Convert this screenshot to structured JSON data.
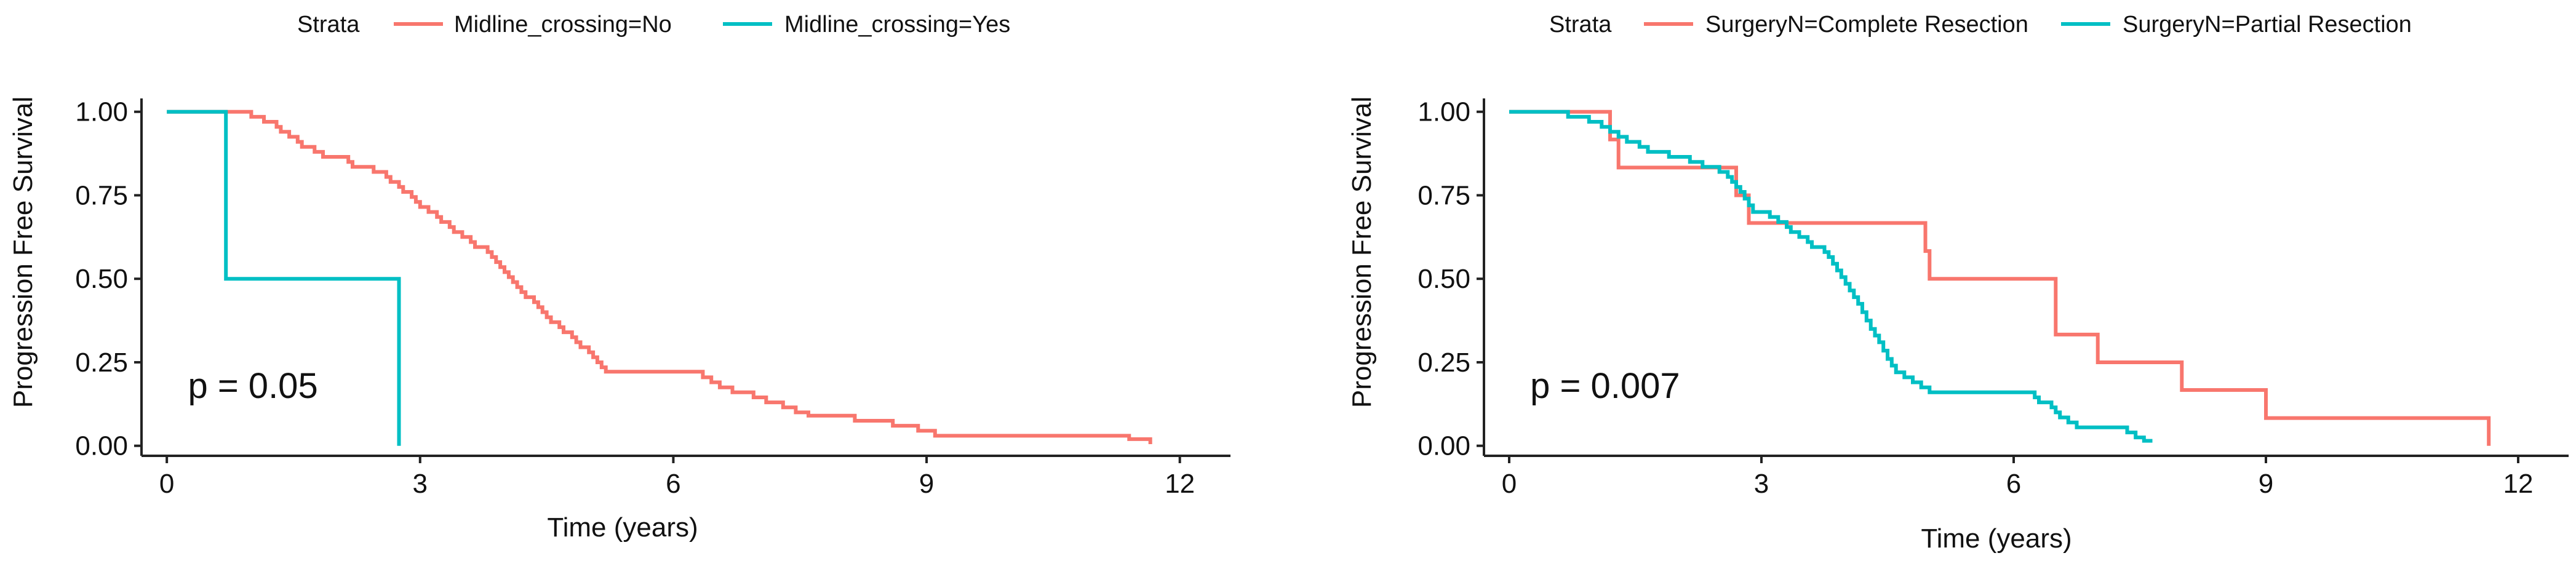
{
  "colors": {
    "series1": "#F8766D",
    "series2": "#00BFC4"
  },
  "chart_data": [
    {
      "type": "line",
      "subtype": "kaplan-meier step",
      "title": "",
      "xlabel": "Time (years)",
      "ylabel": "Progression Free Survival",
      "xlim": [
        -0.3,
        12.6
      ],
      "ylim": [
        -0.03,
        1.04
      ],
      "xticks": [
        0,
        3,
        6,
        9,
        12
      ],
      "xtick_labels": [
        "0",
        "3",
        "6",
        "9",
        "12"
      ],
      "yticks": [
        0,
        0.25,
        0.5,
        0.75,
        1.0
      ],
      "ytick_labels": [
        "0.00",
        "0.25",
        "0.50",
        "0.75",
        "1.00"
      ],
      "legend_position": "top",
      "legend_title": "Strata",
      "annotation": "p = 0.05",
      "annotation_pos": [
        0.25,
        0.18
      ],
      "series": [
        {
          "name": "Midline_crossing=No",
          "color": "#F8766D",
          "points": [
            [
              0,
              1
            ],
            [
              1.0,
              1
            ],
            [
              1.0,
              0.985
            ],
            [
              1.15,
              0.97
            ],
            [
              1.3,
              0.955
            ],
            [
              1.35,
              0.94
            ],
            [
              1.45,
              0.925
            ],
            [
              1.55,
              0.91
            ],
            [
              1.6,
              0.895
            ],
            [
              1.75,
              0.88
            ],
            [
              1.85,
              0.865
            ],
            [
              2.15,
              0.85
            ],
            [
              2.2,
              0.835
            ],
            [
              2.45,
              0.82
            ],
            [
              2.6,
              0.805
            ],
            [
              2.65,
              0.79
            ],
            [
              2.75,
              0.775
            ],
            [
              2.8,
              0.76
            ],
            [
              2.9,
              0.745
            ],
            [
              2.95,
              0.73
            ],
            [
              3.0,
              0.715
            ],
            [
              3.1,
              0.7
            ],
            [
              3.2,
              0.685
            ],
            [
              3.25,
              0.67
            ],
            [
              3.35,
              0.655
            ],
            [
              3.4,
              0.64
            ],
            [
              3.5,
              0.625
            ],
            [
              3.6,
              0.61
            ],
            [
              3.65,
              0.595
            ],
            [
              3.8,
              0.58
            ],
            [
              3.85,
              0.565
            ],
            [
              3.9,
              0.55
            ],
            [
              3.95,
              0.535
            ],
            [
              4.0,
              0.52
            ],
            [
              4.05,
              0.505
            ],
            [
              4.1,
              0.49
            ],
            [
              4.15,
              0.475
            ],
            [
              4.2,
              0.46
            ],
            [
              4.25,
              0.445
            ],
            [
              4.35,
              0.43
            ],
            [
              4.4,
              0.415
            ],
            [
              4.45,
              0.4
            ],
            [
              4.5,
              0.385
            ],
            [
              4.55,
              0.37
            ],
            [
              4.65,
              0.355
            ],
            [
              4.7,
              0.34
            ],
            [
              4.8,
              0.325
            ],
            [
              4.85,
              0.31
            ],
            [
              4.9,
              0.295
            ],
            [
              5.0,
              0.28
            ],
            [
              5.05,
              0.265
            ],
            [
              5.1,
              0.25
            ],
            [
              5.15,
              0.235
            ],
            [
              5.2,
              0.222
            ],
            [
              6.3,
              0.222
            ],
            [
              6.35,
              0.205
            ],
            [
              6.45,
              0.19
            ],
            [
              6.55,
              0.175
            ],
            [
              6.7,
              0.16
            ],
            [
              6.95,
              0.145
            ],
            [
              7.1,
              0.13
            ],
            [
              7.3,
              0.115
            ],
            [
              7.45,
              0.1
            ],
            [
              7.6,
              0.09
            ],
            [
              8.0,
              0.09
            ],
            [
              8.15,
              0.075
            ],
            [
              8.6,
              0.06
            ],
            [
              8.9,
              0.045
            ],
            [
              9.1,
              0.03
            ],
            [
              11.2,
              0.03
            ],
            [
              11.4,
              0.02
            ],
            [
              11.65,
              0.02
            ],
            [
              11.65,
              0.005
            ]
          ]
        },
        {
          "name": "Midline_crossing=Yes",
          "color": "#00BFC4",
          "points": [
            [
              0,
              1
            ],
            [
              0.7,
              1
            ],
            [
              0.7,
              0.5
            ],
            [
              2.75,
              0.5
            ],
            [
              2.75,
              0.0
            ]
          ]
        }
      ]
    },
    {
      "type": "line",
      "subtype": "kaplan-meier step",
      "title": "",
      "xlabel": "Time (years)",
      "ylabel": "Progression Free Survival",
      "xlim": [
        -0.3,
        12.6
      ],
      "ylim": [
        -0.03,
        1.04
      ],
      "xticks": [
        0,
        3,
        6,
        9,
        12
      ],
      "xtick_labels": [
        "0",
        "3",
        "6",
        "9",
        "12"
      ],
      "yticks": [
        0,
        0.25,
        0.5,
        0.75,
        1.0
      ],
      "ytick_labels": [
        "0.00",
        "0.25",
        "0.50",
        "0.75",
        "1.00"
      ],
      "legend_position": "top",
      "legend_title": "Strata",
      "annotation": "p = 0.007",
      "annotation_pos": [
        0.25,
        0.18
      ],
      "series": [
        {
          "name": "SurgeryN=Complete Resection",
          "color": "#F8766D",
          "points": [
            [
              0,
              1
            ],
            [
              1.2,
              1
            ],
            [
              1.2,
              0.917
            ],
            [
              1.3,
              0.917
            ],
            [
              1.3,
              0.833
            ],
            [
              2.7,
              0.833
            ],
            [
              2.7,
              0.75
            ],
            [
              2.85,
              0.75
            ],
            [
              2.85,
              0.667
            ],
            [
              4.95,
              0.667
            ],
            [
              4.95,
              0.583
            ],
            [
              5.0,
              0.583
            ],
            [
              5.0,
              0.5
            ],
            [
              6.5,
              0.5
            ],
            [
              6.5,
              0.333
            ],
            [
              7.0,
              0.333
            ],
            [
              7.0,
              0.25
            ],
            [
              8.0,
              0.25
            ],
            [
              8.0,
              0.167
            ],
            [
              9.0,
              0.167
            ],
            [
              9.0,
              0.083
            ],
            [
              11.65,
              0.083
            ],
            [
              11.65,
              0.0
            ]
          ]
        },
        {
          "name": "SurgeryN=Partial Resection",
          "color": "#00BFC4",
          "points": [
            [
              0,
              1
            ],
            [
              0.7,
              1
            ],
            [
              0.7,
              0.985
            ],
            [
              0.95,
              0.97
            ],
            [
              1.1,
              0.955
            ],
            [
              1.2,
              0.94
            ],
            [
              1.3,
              0.925
            ],
            [
              1.4,
              0.91
            ],
            [
              1.55,
              0.895
            ],
            [
              1.65,
              0.88
            ],
            [
              1.9,
              0.865
            ],
            [
              2.15,
              0.85
            ],
            [
              2.3,
              0.835
            ],
            [
              2.5,
              0.82
            ],
            [
              2.6,
              0.805
            ],
            [
              2.65,
              0.79
            ],
            [
              2.7,
              0.775
            ],
            [
              2.75,
              0.76
            ],
            [
              2.8,
              0.74
            ],
            [
              2.85,
              0.72
            ],
            [
              2.9,
              0.7
            ],
            [
              3.1,
              0.685
            ],
            [
              3.2,
              0.67
            ],
            [
              3.3,
              0.655
            ],
            [
              3.35,
              0.64
            ],
            [
              3.45,
              0.625
            ],
            [
              3.55,
              0.61
            ],
            [
              3.6,
              0.595
            ],
            [
              3.75,
              0.58
            ],
            [
              3.8,
              0.565
            ],
            [
              3.85,
              0.545
            ],
            [
              3.9,
              0.525
            ],
            [
              3.95,
              0.505
            ],
            [
              4.0,
              0.485
            ],
            [
              4.05,
              0.465
            ],
            [
              4.1,
              0.445
            ],
            [
              4.15,
              0.425
            ],
            [
              4.2,
              0.4
            ],
            [
              4.25,
              0.375
            ],
            [
              4.3,
              0.35
            ],
            [
              4.35,
              0.33
            ],
            [
              4.4,
              0.31
            ],
            [
              4.45,
              0.285
            ],
            [
              4.5,
              0.26
            ],
            [
              4.55,
              0.24
            ],
            [
              4.6,
              0.22
            ],
            [
              4.7,
              0.205
            ],
            [
              4.8,
              0.19
            ],
            [
              4.9,
              0.175
            ],
            [
              5.0,
              0.16
            ],
            [
              6.2,
              0.16
            ],
            [
              6.25,
              0.145
            ],
            [
              6.3,
              0.13
            ],
            [
              6.45,
              0.115
            ],
            [
              6.5,
              0.1
            ],
            [
              6.55,
              0.085
            ],
            [
              6.65,
              0.07
            ],
            [
              6.75,
              0.055
            ],
            [
              7.3,
              0.055
            ],
            [
              7.35,
              0.04
            ],
            [
              7.45,
              0.025
            ],
            [
              7.55,
              0.015
            ],
            [
              7.65,
              0.015
            ]
          ]
        }
      ]
    }
  ]
}
